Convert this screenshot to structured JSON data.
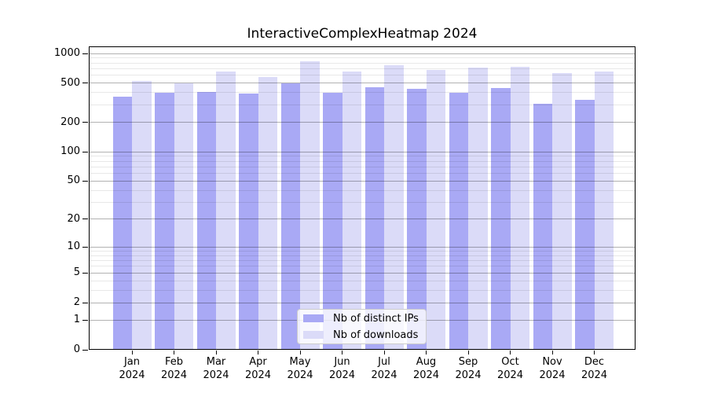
{
  "chart_data": {
    "type": "bar",
    "title": "InteractiveComplexHeatmap 2024",
    "categories": [
      "Jan",
      "Feb",
      "Mar",
      "Apr",
      "May",
      "Jun",
      "Jul",
      "Aug",
      "Sep",
      "Oct",
      "Nov",
      "Dec"
    ],
    "x_year_label": "2024",
    "series": [
      {
        "name": "Nb of distinct IPs",
        "color": "#a9a9f5",
        "values": [
          365,
          400,
          410,
          395,
          495,
          400,
          455,
          435,
          400,
          450,
          310,
          340
        ]
      },
      {
        "name": "Nb of downloads",
        "color": "#dbdbf8",
        "values": [
          530,
          495,
          655,
          580,
          830,
          660,
          755,
          680,
          715,
          730,
          635,
          660
        ]
      }
    ],
    "y_scale": "log1p",
    "ylim": [
      0,
      1000
    ],
    "y_ticks": [
      0,
      1,
      2,
      5,
      10,
      20,
      50,
      100,
      200,
      500,
      1000
    ],
    "y_minor_ticks": [
      3,
      4,
      6,
      7,
      8,
      9,
      30,
      40,
      60,
      70,
      80,
      90,
      300,
      400,
      600,
      700,
      800,
      900
    ],
    "grid": "on",
    "legend_position": "lower center"
  },
  "colors": {
    "grid_major": "rgba(0,0,0,0.30)",
    "grid_minor": "rgba(0,0,0,0.09)",
    "spine": "#000000",
    "text": "#000000",
    "legend_border": "#cccccc",
    "legend_background": "rgba(255,255,255,0.8)"
  }
}
